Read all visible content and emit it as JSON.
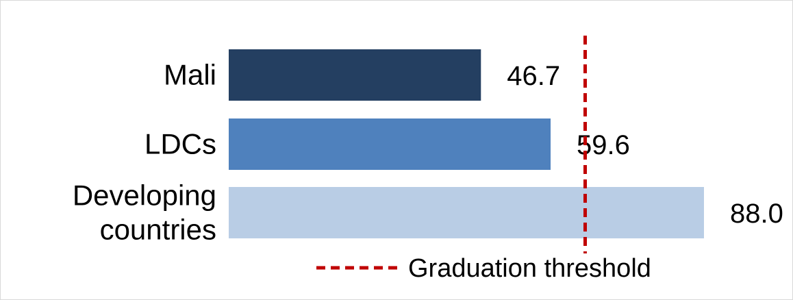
{
  "chart_data": {
    "type": "bar",
    "orientation": "horizontal",
    "categories": [
      [
        "Mali"
      ],
      [
        "LDCs"
      ],
      [
        "Developing",
        "countries"
      ]
    ],
    "values": [
      46.7,
      59.6,
      88.0
    ],
    "value_labels": [
      "46.7",
      "59.6",
      "88.0"
    ],
    "bar_colors": [
      "#243f61",
      "#4f81bd",
      "#b9cde5"
    ],
    "xlim": [
      0,
      88.0
    ],
    "grid": false,
    "threshold": {
      "label": "Graduation threshold",
      "value": 66.0,
      "color": "#c00000",
      "style": "dashed"
    },
    "legend": "bottom"
  }
}
